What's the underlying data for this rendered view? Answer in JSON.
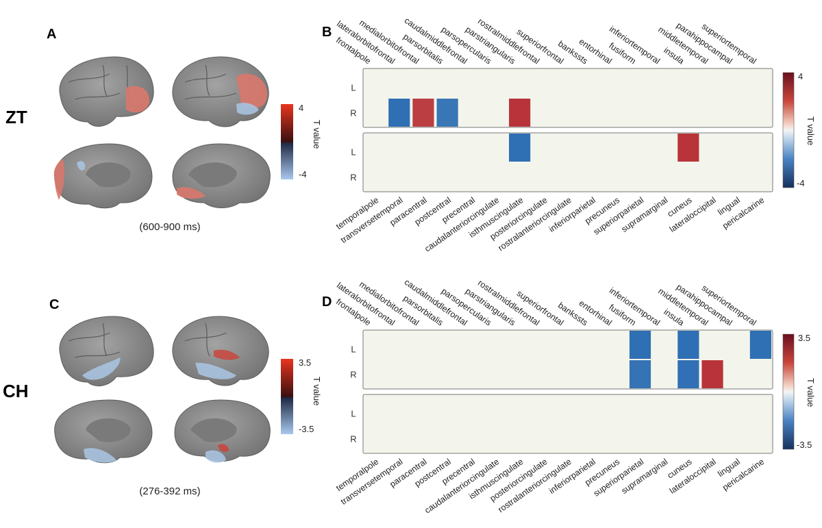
{
  "panels": {
    "A": {
      "letter": "A",
      "group": "ZT",
      "time_window": "(600-900 ms)",
      "colorbar": {
        "max_label": "4",
        "min_label": "-4",
        "title": "T value"
      }
    },
    "C": {
      "letter": "C",
      "group": "CH",
      "time_window": "(276-392 ms)",
      "colorbar": {
        "max_label": "3.5",
        "min_label": "-3.5",
        "title": "T value"
      }
    },
    "B": {
      "letter": "B"
    },
    "D": {
      "letter": "D"
    }
  },
  "colors": {
    "positive": "#b8343a",
    "negative": "#2f6fb3",
    "background": "#f3f5ec",
    "brain": "#8f8f8f"
  },
  "chart_data": [
    {
      "type": "heatmap",
      "panel": "B",
      "colorbar": {
        "title": "T value",
        "max_label": "4",
        "min_label": "-4",
        "range": [
          -4,
          4
        ]
      },
      "hemispheres": [
        "L",
        "R"
      ],
      "top_regions": [
        "frontalpole",
        "lateralorbitofrontal",
        "medialorbitofrontal",
        "parsorbitalis",
        "caudalmiddlefrontal",
        "parsopercularis",
        "parstriangularis",
        "rostralmiddlefrontal",
        "superiorfrontal",
        "bankssts",
        "entorhinal",
        "fusiform",
        "inferiortemporal",
        "insula",
        "middletemporal",
        "parahippocampal",
        "superiortemporal"
      ],
      "bottom_regions": [
        "temporalpole",
        "transversetemporal",
        "paracentral",
        "postcentral",
        "precentral",
        "caudalanteriorcingulate",
        "isthmuscingulate",
        "posteriorcingulate",
        "rostralanteriorcingulate",
        "inferiorparietal",
        "precuneus",
        "superiorparietal",
        "supramarginal",
        "cuneus",
        "lateraloccipital",
        "lingual",
        "pericalcarine"
      ],
      "cells": [
        {
          "block": "top",
          "row": "R",
          "col": 1,
          "value": -3.6
        },
        {
          "block": "top",
          "row": "R",
          "col": 2,
          "value": 3.0
        },
        {
          "block": "top",
          "row": "R",
          "col": 3,
          "value": -3.0
        },
        {
          "block": "top",
          "row": "R",
          "col": 6,
          "value": 3.3
        },
        {
          "block": "bottom",
          "row": "L",
          "col": 6,
          "value": -3.3
        },
        {
          "block": "bottom",
          "row": "L",
          "col": 13,
          "value": 3.4
        }
      ]
    },
    {
      "type": "heatmap",
      "panel": "D",
      "colorbar": {
        "title": "T value",
        "max_label": "3.5",
        "min_label": "-3.5",
        "range": [
          -3.5,
          3.5
        ]
      },
      "hemispheres": [
        "L",
        "R"
      ],
      "top_regions": [
        "frontalpole",
        "lateralorbitofrontal",
        "medialorbitofrontal",
        "parsorbitalis",
        "caudalmiddlefrontal",
        "parsopercularis",
        "parstriangularis",
        "rostralmiddlefrontal",
        "superiorfrontal",
        "bankssts",
        "entorhinal",
        "fusiform",
        "inferiortemporal",
        "insula",
        "middletemporal",
        "parahippocampal",
        "superiortemporal"
      ],
      "bottom_regions": [
        "temporalpole",
        "transversetemporal",
        "paracentral",
        "postcentral",
        "precentral",
        "caudalanteriorcingulate",
        "isthmuscingulate",
        "posteriorcingulate",
        "rostralanteriorcingulate",
        "inferiorparietal",
        "precuneus",
        "superiorparietal",
        "supramarginal",
        "cuneus",
        "lateraloccipital",
        "lingual",
        "pericalcarine"
      ],
      "cells": [
        {
          "block": "top",
          "row": "L",
          "col": 11,
          "value": -2.9
        },
        {
          "block": "top",
          "row": "R",
          "col": 11,
          "value": -2.7
        },
        {
          "block": "top",
          "row": "L",
          "col": 13,
          "value": -3.0
        },
        {
          "block": "top",
          "row": "R",
          "col": 13,
          "value": -2.8
        },
        {
          "block": "top",
          "row": "R",
          "col": 14,
          "value": 2.9
        },
        {
          "block": "top",
          "row": "L",
          "col": 16,
          "value": -2.9
        }
      ]
    }
  ]
}
